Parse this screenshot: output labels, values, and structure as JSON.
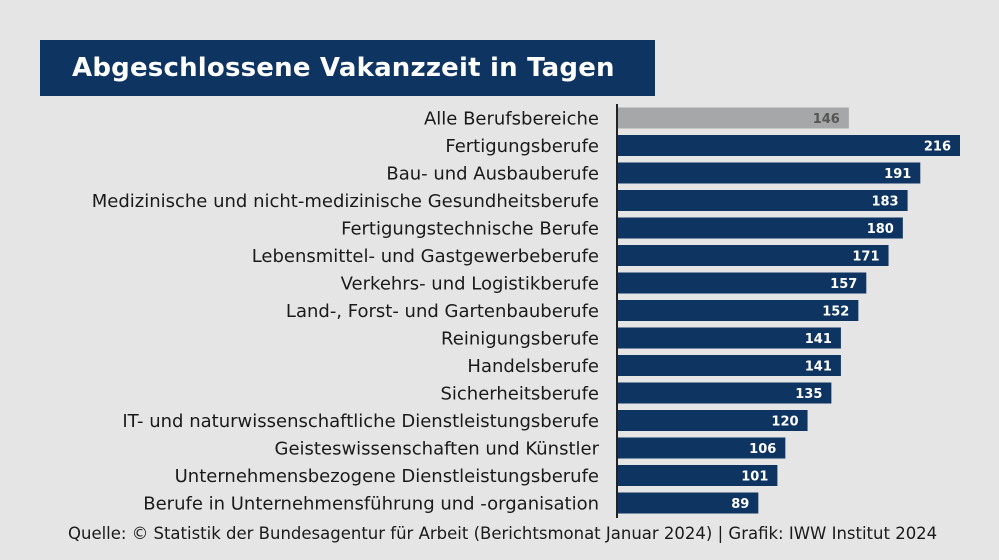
{
  "chart_data": {
    "type": "bar",
    "orientation": "horizontal",
    "title": "Abgeschlossene Vakanzzeit in Tagen",
    "categories": [
      "Alle Berufsbereiche",
      "Fertigungsberufe",
      "Bau- und Ausbauberufe",
      "Medizinische und nicht-medizinische Gesundheitsberufe",
      "Fertigungstechnische Berufe",
      "Lebensmittel- und Gastgewerbeberufe",
      "Verkehrs- und Logistikberufe",
      "Land-, Forst- und Gartenbauberufe",
      "Reinigungsberufe",
      "Handelsberufe",
      "Sicherheitsberufe",
      "IT- und naturwissenschaftliche Dienstleistungsberufe",
      "Geisteswissenschaften und Künstler",
      "Unternehmensbezogene Dienstleistungsberufe",
      "Berufe in Unternehmensführung und -organisation"
    ],
    "values": [
      146,
      216,
      191,
      183,
      180,
      171,
      157,
      152,
      141,
      141,
      135,
      120,
      106,
      101,
      89
    ],
    "xlim": [
      0,
      216
    ],
    "grid": false,
    "legend": "none",
    "colors": {
      "bar": "#0e3461",
      "highlight_bar": "#a6a7a9",
      "value_label": "#ffffff",
      "highlight_value_label": "#555555",
      "axis": "#222222"
    },
    "highlight_index": 0
  },
  "source": "Quelle: © Statistik der Bundesagentur für Arbeit (Berichtsmonat Januar 2024) | Grafik: IWW Institut 2024"
}
